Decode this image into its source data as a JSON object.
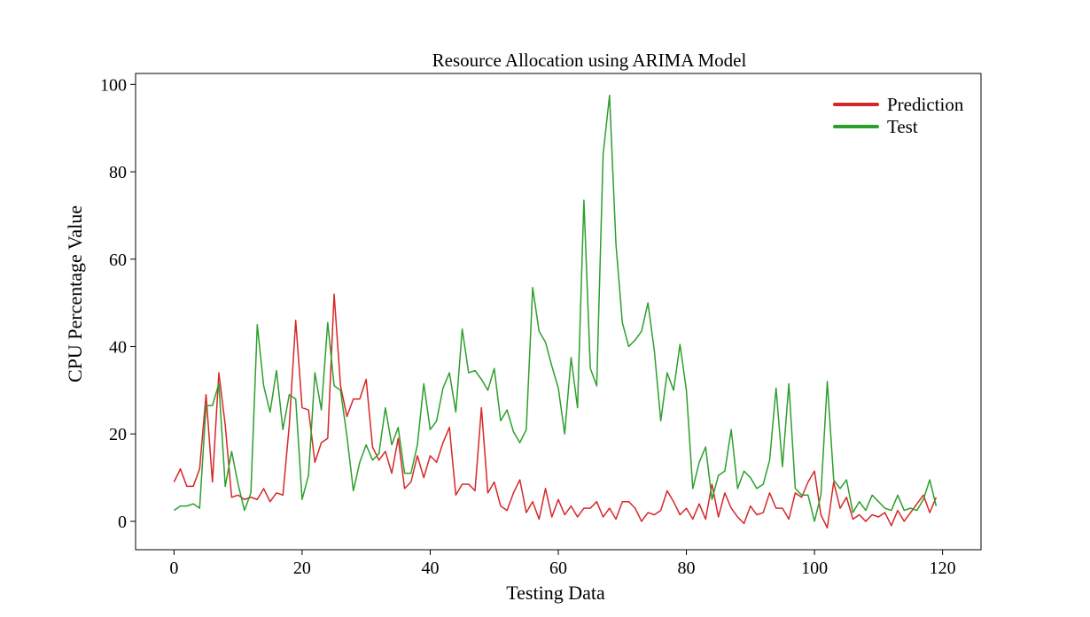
{
  "chart_data": {
    "type": "line",
    "title": "Resource Allocation using ARIMA Model",
    "xlabel": "Testing Data",
    "ylabel": "CPU Percentage Value",
    "xlim": [
      -6,
      126
    ],
    "ylim": [
      -6.5,
      102.5
    ],
    "xticks": [
      0,
      20,
      40,
      60,
      80,
      100,
      120
    ],
    "yticks": [
      0,
      20,
      40,
      60,
      80,
      100
    ],
    "grid": false,
    "legend_position": "top-right",
    "series": [
      {
        "name": "Prediction",
        "color": "#d62728",
        "values": [
          9,
          12,
          8,
          8,
          12,
          29,
          9,
          34,
          22,
          5.5,
          6,
          5,
          5.5,
          5,
          7.5,
          4.5,
          6.5,
          6,
          22,
          46,
          26,
          25.5,
          13.5,
          18,
          19,
          52,
          31,
          24,
          28,
          28,
          32.5,
          17,
          14,
          16,
          11,
          19,
          7.5,
          9,
          15,
          10,
          15,
          13.5,
          18,
          21.5,
          6,
          8.5,
          8.5,
          7,
          26,
          6.5,
          9,
          3.5,
          2.5,
          6.5,
          9.5,
          2,
          4.5,
          0.5,
          7.5,
          1,
          5,
          1.5,
          3.5,
          1,
          3,
          3,
          4.5,
          1,
          3,
          0.5,
          4.5,
          4.5,
          3,
          0,
          2,
          1.5,
          2.5,
          7,
          4.5,
          1.5,
          3,
          0.5,
          4,
          0.5,
          8.5,
          1,
          6.5,
          3,
          1,
          -0.5,
          3.5,
          1.5,
          2,
          6.5,
          3,
          3,
          0.5,
          6.5,
          5.5,
          9,
          11.5,
          1.5,
          -1.5,
          9,
          3,
          5.5,
          0.5,
          1.5,
          0,
          1.5,
          1,
          2,
          -1,
          2.5,
          0,
          2,
          4,
          6,
          2,
          5.5
        ]
      },
      {
        "name": "Test",
        "color": "#2ca02c",
        "values": [
          2.5,
          3.5,
          3.5,
          4,
          3,
          26.5,
          26.5,
          31.5,
          8,
          16,
          8.5,
          2.5,
          6.5,
          45,
          31,
          25,
          34.5,
          21,
          29,
          28,
          5,
          10.5,
          34,
          25.5,
          45.5,
          31,
          30,
          19.5,
          7,
          13.5,
          17.5,
          14,
          15.5,
          26,
          17.5,
          21.5,
          11,
          11,
          17.5,
          31.5,
          21,
          23,
          30.5,
          34,
          25,
          44,
          34,
          34.5,
          32.5,
          30,
          35,
          23,
          25.5,
          20.5,
          18,
          21,
          53.5,
          43.5,
          41,
          35.5,
          30.5,
          20,
          37.5,
          26,
          73.5,
          35,
          31,
          84,
          97.5,
          63.5,
          45.5,
          40,
          41.5,
          43.5,
          50,
          39,
          23,
          34,
          30,
          40.5,
          30,
          7.5,
          13.5,
          17,
          5,
          10.5,
          11.5,
          21,
          7.5,
          11.5,
          10,
          7.5,
          8.5,
          14,
          30.5,
          12.5,
          31.5,
          7.5,
          6,
          6,
          0,
          6,
          32,
          9.5,
          7.5,
          9.5,
          2,
          4.5,
          2.5,
          6,
          4.5,
          3,
          2.5,
          6,
          2.5,
          3,
          2.5,
          5,
          9.5,
          3.5
        ]
      }
    ]
  }
}
